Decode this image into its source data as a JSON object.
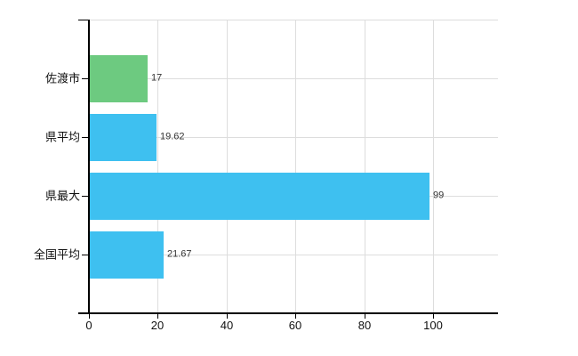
{
  "chart_data": {
    "type": "bar",
    "orientation": "horizontal",
    "title": "",
    "xlabel": "",
    "ylabel": "",
    "categories": [
      "佐渡市",
      "県平均",
      "県最大",
      "全国平均"
    ],
    "values": [
      17,
      19.62,
      99,
      21.67
    ],
    "value_labels": [
      "17",
      "19.62",
      "99",
      "21.67"
    ],
    "bar_colors": [
      "#6DCA80",
      "#3EC0F0",
      "#3EC0F0",
      "#3EC0F0"
    ],
    "x_ticks": [
      "0",
      "20",
      "40",
      "60",
      "80",
      "100"
    ],
    "x_tick_values": [
      0,
      20,
      40,
      60,
      80,
      100
    ],
    "xlim": [
      0,
      118.9
    ],
    "grid": true,
    "legend": "none"
  },
  "colors": {
    "bar_blue": "#3EC0F0",
    "bar_green": "#6DCA80",
    "grid": "#DDDDDD",
    "axis": "#000000",
    "text": "#111111",
    "value_text": "#333333",
    "background": "#FFFFFF"
  }
}
